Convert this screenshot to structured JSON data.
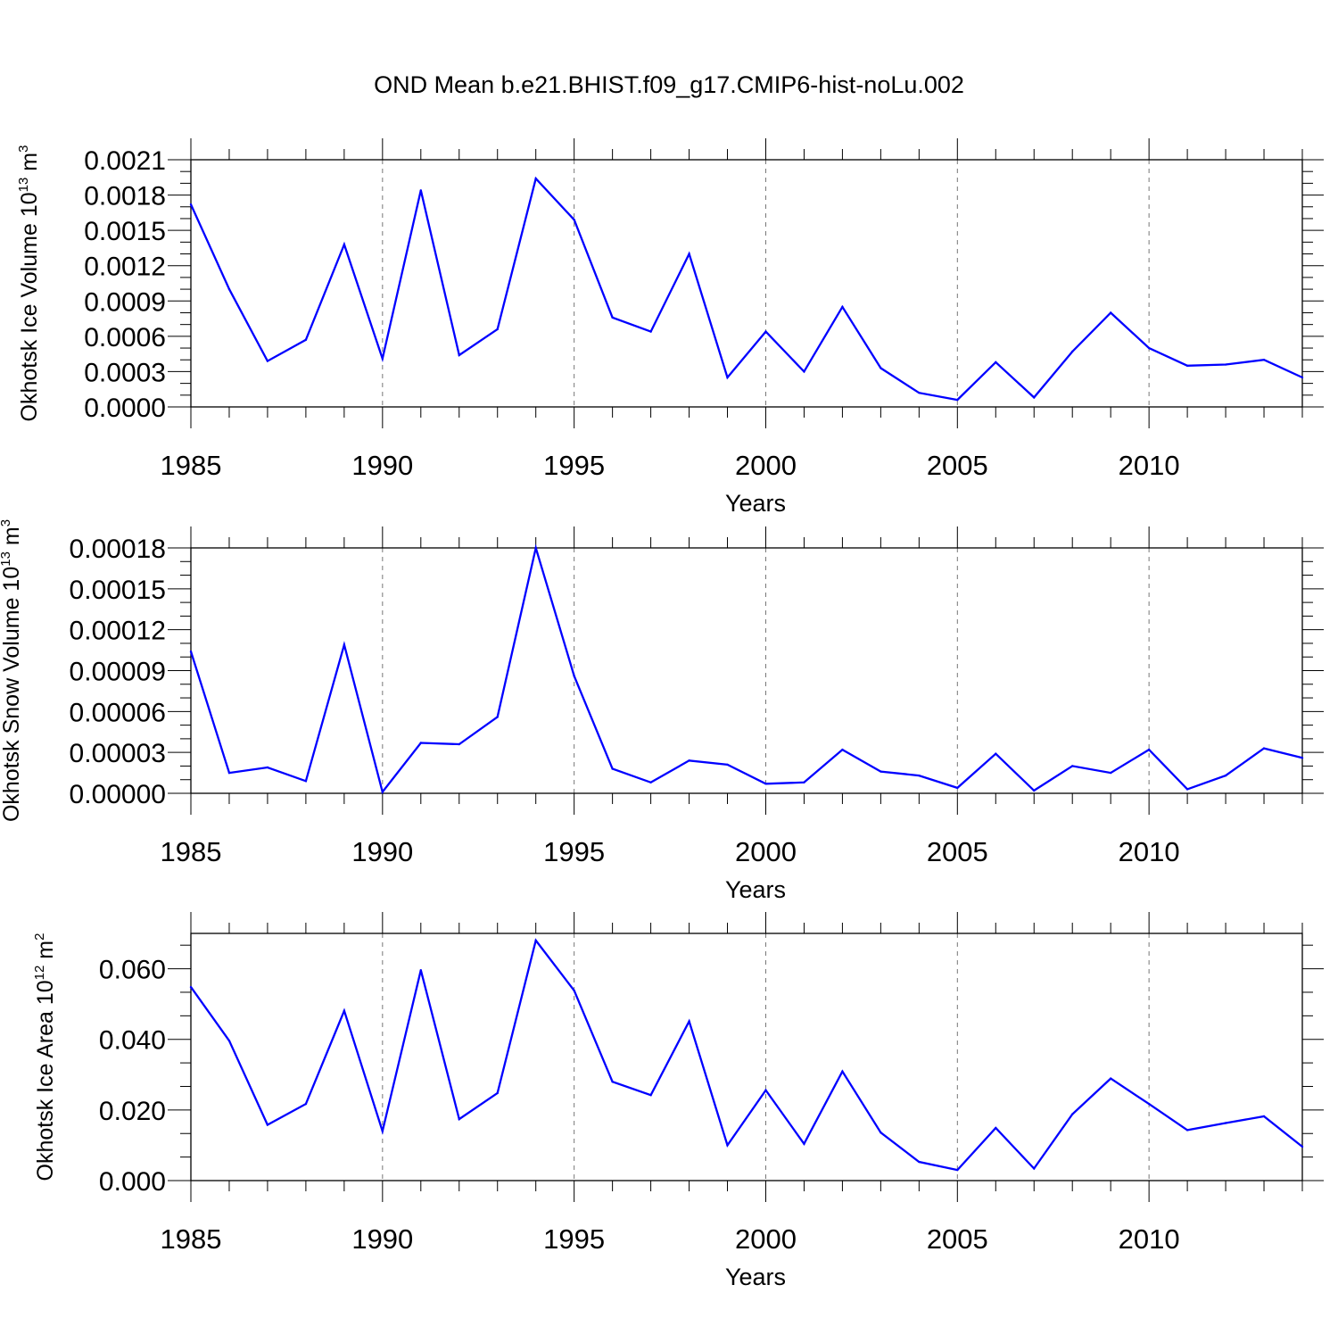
{
  "figure": {
    "title": "OND Mean b.e21.BHIST.f09_g17.CMIP6-hist-noLu.002"
  },
  "chart_data": [
    {
      "type": "line",
      "ylabel": "Okhotsk Ice Volume 10",
      "ylabel_exp": "13",
      "ylabel_unit": "m",
      "ylabel_unit_exp": "3",
      "xlabel": "Years",
      "xlim": [
        1985,
        2014
      ],
      "ylim": [
        0,
        0.0021
      ],
      "ytick_values": [
        0,
        0.0003,
        0.0006,
        0.0009,
        0.0012,
        0.0015,
        0.0018,
        0.0021
      ],
      "ytick_labels": [
        "0.0000",
        "0.0003",
        "0.0006",
        "0.0009",
        "0.0012",
        "0.0015",
        "0.0018",
        "0.0021"
      ],
      "xtick_values": [
        1985,
        1990,
        1995,
        2000,
        2005,
        2010
      ],
      "xtick_labels": [
        "1985",
        "1990",
        "1995",
        "2000",
        "2005",
        "2010"
      ],
      "grid": "vertical dashed at major x ticks",
      "line_color": "#0000ff",
      "x": [
        1985,
        1986,
        1987,
        1988,
        1989,
        1990,
        1991,
        1992,
        1993,
        1994,
        1995,
        1996,
        1997,
        1998,
        1999,
        2000,
        2001,
        2002,
        2003,
        2004,
        2005,
        2006,
        2007,
        2008,
        2009,
        2010,
        2011,
        2012,
        2013,
        2014
      ],
      "values": [
        0.00172,
        0.001,
        0.00039,
        0.00057,
        0.00138,
        0.00041,
        0.00184,
        0.00044,
        0.00066,
        0.00194,
        0.00159,
        0.00076,
        0.00064,
        0.0013,
        0.00025,
        0.00064,
        0.0003,
        0.00085,
        0.00033,
        0.00012,
        6e-05,
        0.00038,
        8e-05,
        0.00047,
        0.0008,
        0.0005,
        0.00035,
        0.00036,
        0.0004,
        0.00025
      ]
    },
    {
      "type": "line",
      "ylabel": "Okhotsk Snow Volume 10",
      "ylabel_exp": "13",
      "ylabel_unit": "m",
      "ylabel_unit_exp": "3",
      "xlabel": "Years",
      "xlim": [
        1985,
        2014
      ],
      "ylim": [
        0,
        0.00018
      ],
      "ytick_values": [
        0,
        3e-05,
        6e-05,
        9e-05,
        0.00012,
        0.00015,
        0.00018
      ],
      "ytick_labels": [
        "0.00000",
        "0.00003",
        "0.00006",
        "0.00009",
        "0.00012",
        "0.00015",
        "0.00018"
      ],
      "xtick_values": [
        1985,
        1990,
        1995,
        2000,
        2005,
        2010
      ],
      "xtick_labels": [
        "1985",
        "1990",
        "1995",
        "2000",
        "2005",
        "2010"
      ],
      "grid": "vertical dashed at major x ticks",
      "line_color": "#0000ff",
      "x": [
        1985,
        1986,
        1987,
        1988,
        1989,
        1990,
        1991,
        1992,
        1993,
        1994,
        1995,
        1996,
        1997,
        1998,
        1999,
        2000,
        2001,
        2002,
        2003,
        2004,
        2005,
        2006,
        2007,
        2008,
        2009,
        2010,
        2011,
        2012,
        2013,
        2014
      ],
      "values": [
        0.000104,
        1.5e-05,
        1.9e-05,
        9e-06,
        0.000109,
        1e-06,
        3.7e-05,
        3.6e-05,
        5.6e-05,
        0.00018,
        8.6e-05,
        1.8e-05,
        8e-06,
        2.4e-05,
        2.1e-05,
        7e-06,
        8e-06,
        3.2e-05,
        1.6e-05,
        1.3e-05,
        4e-06,
        2.9e-05,
        2e-06,
        2e-05,
        1.5e-05,
        3.2e-05,
        3e-06,
        1.3e-05,
        3.3e-05,
        2.6e-05
      ]
    },
    {
      "type": "line",
      "ylabel": "Okhotsk Ice Area 10",
      "ylabel_exp": "12",
      "ylabel_unit": "m",
      "ylabel_unit_exp": "2",
      "xlabel": "Years",
      "xlim": [
        1985,
        2014
      ],
      "ylim": [
        0,
        0.07
      ],
      "ytick_values": [
        0,
        0.02,
        0.04,
        0.06
      ],
      "ytick_labels": [
        "0.000",
        "0.020",
        "0.040",
        "0.060"
      ],
      "xtick_values": [
        1985,
        1990,
        1995,
        2000,
        2005,
        2010
      ],
      "xtick_labels": [
        "1985",
        "1990",
        "1995",
        "2000",
        "2005",
        "2010"
      ],
      "grid": "vertical dashed at major x ticks",
      "line_color": "#0000ff",
      "x": [
        1985,
        1986,
        1987,
        1988,
        1989,
        1990,
        1991,
        1992,
        1993,
        1994,
        1995,
        1996,
        1997,
        1998,
        1999,
        2000,
        2001,
        2002,
        2003,
        2004,
        2005,
        2006,
        2007,
        2008,
        2009,
        2010,
        2011,
        2012,
        2013,
        2014
      ],
      "values": [
        0.0548,
        0.0396,
        0.0158,
        0.0217,
        0.0481,
        0.014,
        0.0596,
        0.0174,
        0.0248,
        0.068,
        0.0538,
        0.028,
        0.0242,
        0.0451,
        0.01,
        0.0256,
        0.0104,
        0.0309,
        0.0136,
        0.0053,
        0.003,
        0.0149,
        0.0034,
        0.0188,
        0.0289,
        0.0217,
        0.0143,
        0.0163,
        0.0182,
        0.0096
      ]
    }
  ]
}
